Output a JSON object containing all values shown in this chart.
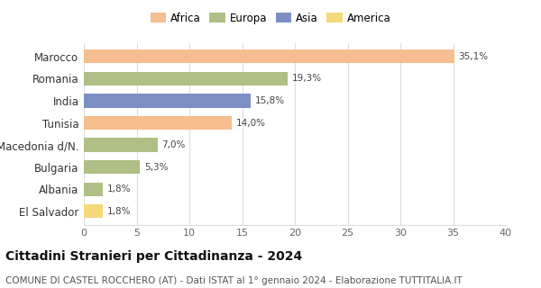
{
  "countries": [
    "Marocco",
    "Romania",
    "India",
    "Tunisia",
    "Macedonia d/N.",
    "Bulgaria",
    "Albania",
    "El Salvador"
  ],
  "values": [
    35.1,
    19.3,
    15.8,
    14.0,
    7.0,
    5.3,
    1.8,
    1.8
  ],
  "labels": [
    "35,1%",
    "19,3%",
    "15,8%",
    "14,0%",
    "7,0%",
    "5,3%",
    "1,8%",
    "1,8%"
  ],
  "bar_colors": [
    "#F5BE8E",
    "#AFBF85",
    "#7B8FC4",
    "#F5BE8E",
    "#AFBF85",
    "#AFBF85",
    "#AFBF85",
    "#F5D878"
  ],
  "legend_items": [
    {
      "label": "Africa",
      "color": "#F5BE8E"
    },
    {
      "label": "Europa",
      "color": "#AFBF85"
    },
    {
      "label": "Asia",
      "color": "#7B8FC4"
    },
    {
      "label": "America",
      "color": "#F5D878"
    }
  ],
  "xlim": [
    0,
    40
  ],
  "xticks": [
    0,
    5,
    10,
    15,
    20,
    25,
    30,
    35,
    40
  ],
  "title": "Cittadini Stranieri per Cittadinanza - 2024",
  "subtitle": "COMUNE DI CASTEL ROCCHERO (AT) - Dati ISTAT al 1° gennaio 2024 - Elaborazione TUTTITALIA.IT",
  "title_fontsize": 10,
  "subtitle_fontsize": 7.5,
  "background_color": "#ffffff",
  "grid_color": "#dddddd"
}
